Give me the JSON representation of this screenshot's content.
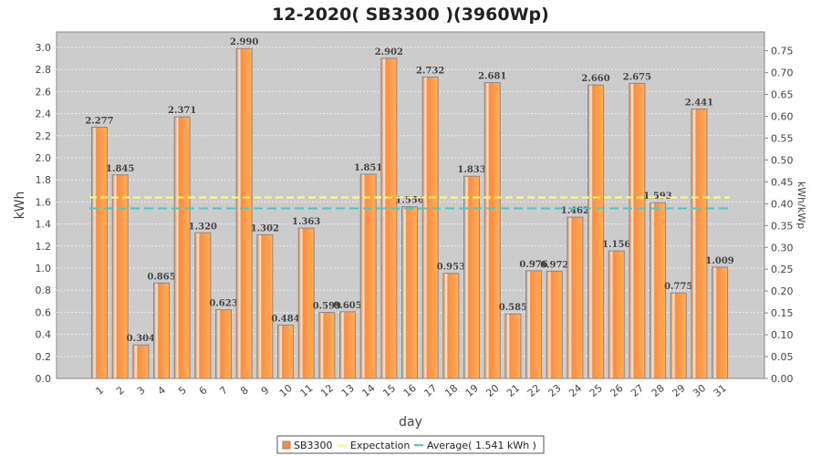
{
  "chart_data": {
    "type": "bar",
    "title": "12-2020( SB3300 )(3960Wp)",
    "xlabel": "day",
    "ylabel": "kWh",
    "y2label": "kWh/kWp",
    "categories": [
      "1",
      "2",
      "3",
      "4",
      "5",
      "6",
      "7",
      "8",
      "9",
      "10",
      "11",
      "12",
      "13",
      "14",
      "15",
      "16",
      "17",
      "18",
      "19",
      "20",
      "21",
      "22",
      "23",
      "24",
      "25",
      "26",
      "27",
      "28",
      "29",
      "30",
      "31"
    ],
    "series": [
      {
        "name": "SB3300",
        "values": [
          2.277,
          1.845,
          0.304,
          0.865,
          2.371,
          1.32,
          0.623,
          2.99,
          1.302,
          0.484,
          1.363,
          0.599,
          0.605,
          1.851,
          2.902,
          1.556,
          2.732,
          0.953,
          1.833,
          2.681,
          0.585,
          0.976,
          0.972,
          1.462,
          2.66,
          1.156,
          2.675,
          1.593,
          0.775,
          2.441,
          1.009
        ],
        "color": "#ff8c3a"
      }
    ],
    "value_labels": [
      "2.277",
      "1.845",
      "0.304",
      "0.865",
      "2.371",
      "1.320",
      "0.623",
      "2.990",
      "1.302",
      "0.484",
      "1.363",
      "0.599",
      "0.605",
      "1.851",
      "2.902",
      "1.556",
      "2.732",
      "0.953",
      "1.833",
      "2.681",
      "0.585",
      "0.976",
      "0.972",
      "1.462",
      "2.660",
      "1.156",
      "2.675",
      "1.593",
      "0.775",
      "2.441",
      "1.009"
    ],
    "expectation": 1.64,
    "average": 1.541,
    "expectation_color": "#ffff66",
    "average_color": "#4fc9c0",
    "ylim": [
      0,
      3.14
    ],
    "yticks": [
      "0.0",
      "0.2",
      "0.4",
      "0.6",
      "0.8",
      "1.0",
      "1.2",
      "1.4",
      "1.6",
      "1.8",
      "2.0",
      "2.2",
      "2.4",
      "2.6",
      "2.8",
      "3.0"
    ],
    "y2ticks": [
      "0.00",
      "0.05",
      "0.10",
      "0.15",
      "0.20",
      "0.25",
      "0.30",
      "0.35",
      "0.40",
      "0.45",
      "0.50",
      "0.55",
      "0.60",
      "0.65",
      "0.70",
      "0.75"
    ],
    "y2_divisor": 3.96,
    "legend": {
      "position": "bottom",
      "items": [
        "SB3300",
        "Expectation",
        "Average( 1.541 kWh )"
      ]
    },
    "grid": true
  }
}
